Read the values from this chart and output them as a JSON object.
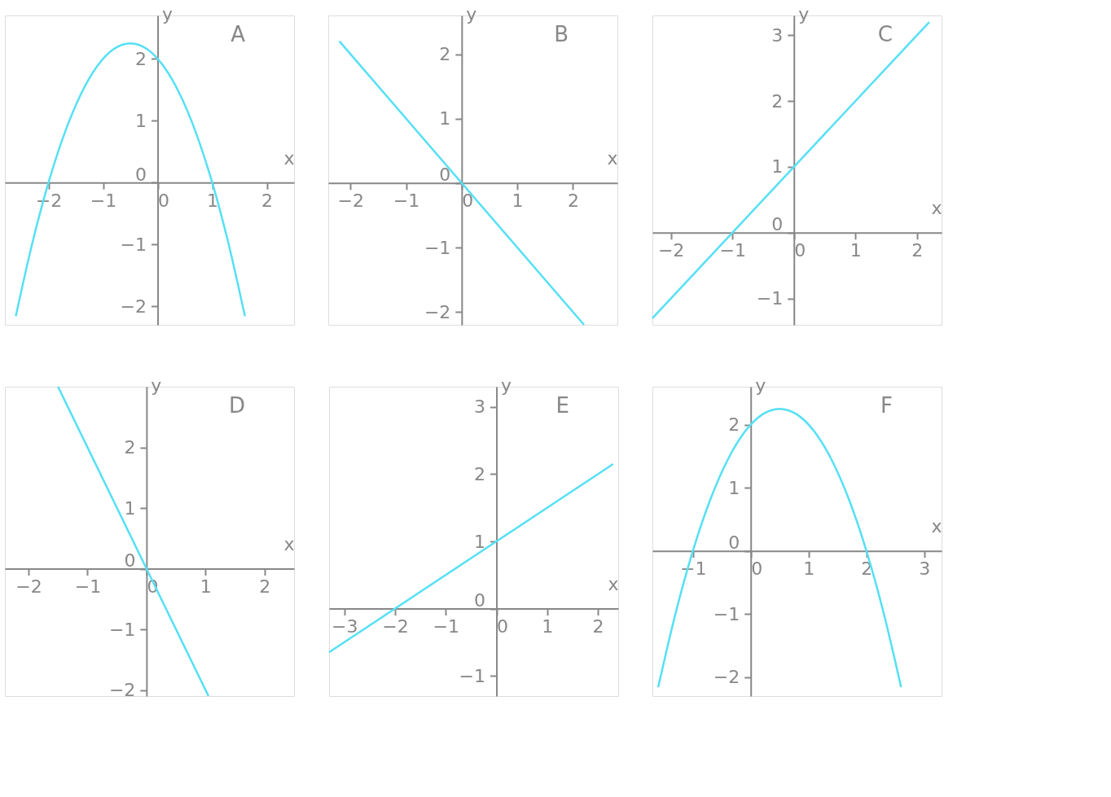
{
  "chart_data": [
    {
      "type": "line",
      "title": "A",
      "xlabel": "x",
      "ylabel": "y",
      "xlim": [
        -2.8,
        2.5
      ],
      "ylim": [
        -2.3,
        2.7
      ],
      "xticks": [
        -2,
        -1,
        0,
        1,
        2
      ],
      "yticks": [
        -2,
        -1,
        0,
        1,
        2
      ],
      "series": [
        {
          "color": "#55e0f5",
          "x": [
            -2.6,
            -2.3,
            -2.0,
            -1.7,
            -1.4,
            -1.1,
            -0.8,
            -0.5,
            -0.2,
            0.1,
            0.4,
            0.7,
            1.0,
            1.3,
            1.6
          ],
          "values": [
            -2.16,
            -0.99,
            0,
            0.81,
            1.44,
            1.89,
            2.16,
            2.25,
            2.16,
            1.89,
            1.44,
            0.81,
            0,
            -0.99,
            -2.16
          ]
        }
      ]
    },
    {
      "type": "line",
      "title": "B",
      "xlabel": "x",
      "ylabel": "y",
      "xlim": [
        -2.4,
        2.8
      ],
      "ylim": [
        -2.2,
        2.6
      ],
      "xticks": [
        -2,
        -1,
        0,
        1,
        2
      ],
      "yticks": [
        -2,
        -1,
        0,
        1,
        2
      ],
      "series": [
        {
          "color": "#55e0f5",
          "x": [
            -2.2,
            2.2
          ],
          "values": [
            2.2,
            -2.2
          ]
        }
      ]
    },
    {
      "type": "line",
      "title": "C",
      "xlabel": "x",
      "ylabel": "y",
      "xlim": [
        -2.3,
        2.4
      ],
      "ylim": [
        -1.4,
        3.3
      ],
      "xticks": [
        -2,
        -1,
        0,
        1,
        2
      ],
      "yticks": [
        -1,
        0,
        1,
        2,
        3
      ],
      "series": [
        {
          "color": "#55e0f5",
          "x": [
            -2.3,
            2.2
          ],
          "values": [
            -1.3,
            3.2
          ]
        }
      ]
    },
    {
      "type": "line",
      "title": "D",
      "xlabel": "x",
      "ylabel": "y",
      "xlim": [
        -2.4,
        2.5
      ],
      "ylim": [
        -2.1,
        3.0
      ],
      "xticks": [
        -2,
        -1,
        0,
        1,
        2
      ],
      "yticks": [
        -2,
        -1,
        0,
        1,
        2
      ],
      "series": [
        {
          "color": "#55e0f5",
          "x": [
            -1.5,
            1.05
          ],
          "values": [
            3.0,
            -2.1
          ]
        }
      ]
    },
    {
      "type": "line",
      "title": "E",
      "xlabel": "x",
      "ylabel": "y",
      "xlim": [
        -3.3,
        2.4
      ],
      "ylim": [
        -1.3,
        3.3
      ],
      "xticks": [
        -3,
        -2,
        -1,
        0,
        1,
        2
      ],
      "yticks": [
        -1,
        0,
        1,
        2,
        3
      ],
      "series": [
        {
          "color": "#55e0f5",
          "x": [
            -3.3,
            2.3
          ],
          "values": [
            -0.65,
            2.15
          ]
        }
      ]
    },
    {
      "type": "line",
      "title": "F",
      "xlabel": "x",
      "ylabel": "y",
      "xlim": [
        -1.7,
        3.3
      ],
      "ylim": [
        -2.3,
        2.6
      ],
      "xticks": [
        -1,
        0,
        1,
        2,
        3
      ],
      "yticks": [
        -2,
        -1,
        0,
        1,
        2
      ],
      "series": [
        {
          "color": "#55e0f5",
          "x": [
            -1.6,
            -1.3,
            -1.0,
            -0.7,
            -0.4,
            -0.1,
            0.2,
            0.5,
            0.8,
            1.1,
            1.4,
            1.7,
            2.0,
            2.3,
            2.6
          ],
          "values": [
            -2.16,
            -0.99,
            0,
            0.81,
            1.44,
            1.89,
            2.16,
            2.25,
            2.16,
            1.89,
            1.44,
            0.81,
            0,
            -0.99,
            -2.16
          ]
        }
      ]
    }
  ]
}
